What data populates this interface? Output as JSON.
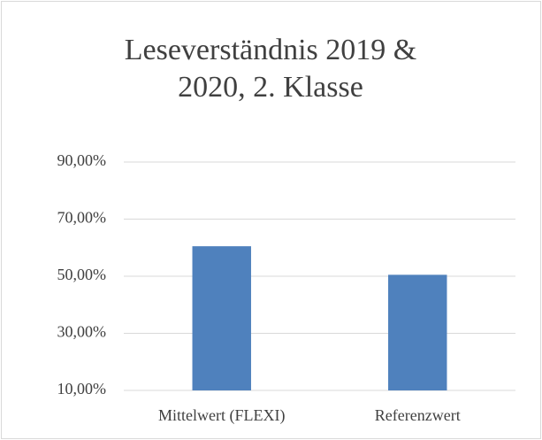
{
  "chart_data": {
    "type": "bar",
    "title": "Leseverständnis 2019 & 2020, 2. Klasse",
    "categories": [
      "Mittelwert (FLEXI)",
      "Referenzwert"
    ],
    "values": [
      60.5,
      50.5
    ],
    "color": "#4f81bd",
    "ylim": [
      10,
      90
    ],
    "yticks": [
      {
        "value": 10,
        "label": "10,00%"
      },
      {
        "value": 30,
        "label": "30,00%"
      },
      {
        "value": 50,
        "label": "50,00%"
      },
      {
        "value": 70,
        "label": "70,00%"
      },
      {
        "value": 90,
        "label": "90,00%"
      }
    ],
    "grid": true
  }
}
